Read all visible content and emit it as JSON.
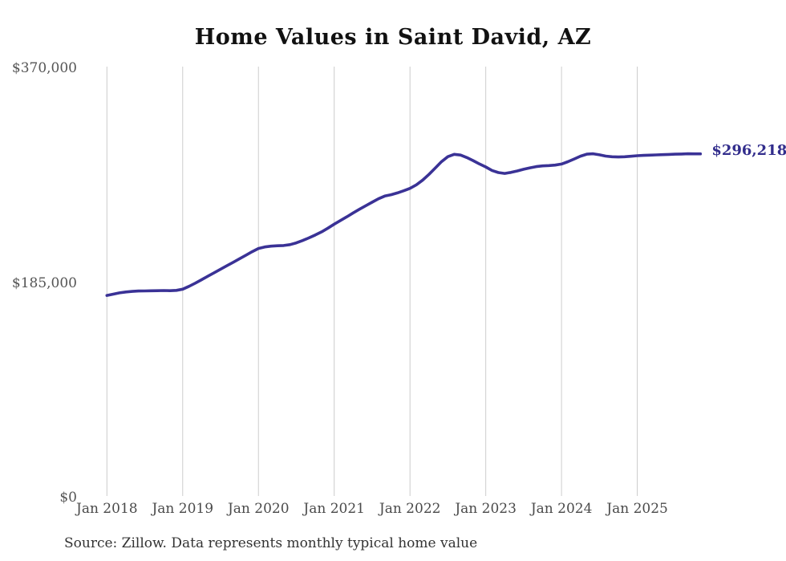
{
  "title": "Home Values in Saint David, AZ",
  "source_note": "Source: Zillow. Data represents monthly typical home value",
  "end_label": "$296,218",
  "colors": {
    "line": "#3a3296",
    "end_label_text": "#322d8c",
    "grid": "#cccccc",
    "axis_text": "#555555",
    "title_text": "#111111",
    "source_text": "#333333",
    "background": "#ffffff"
  },
  "chart_data": {
    "type": "line",
    "title": "Home Values in Saint David, AZ",
    "xlabel": "",
    "ylabel": "",
    "ylim": [
      0,
      370000
    ],
    "grid": "vertical-only",
    "legend": "none",
    "start_month": "2018-01",
    "end_month": "2025-11",
    "final_value": 296218,
    "x_tick_labels": [
      "Jan 2018",
      "Jan 2019",
      "Jan 2020",
      "Jan 2021",
      "Jan 2022",
      "Jan 2023",
      "Jan 2024",
      "Jan 2025"
    ],
    "y_ticks": [
      {
        "label": "$0",
        "value": 0
      },
      {
        "label": "$185,000",
        "value": 185000
      },
      {
        "label": "$370,000",
        "value": 370000
      }
    ],
    "series": [
      {
        "name": "Monthly typical home value",
        "values": [
          174200,
          175300,
          176400,
          177200,
          177700,
          178000,
          178100,
          178200,
          178300,
          178400,
          178300,
          178600,
          179600,
          182000,
          184800,
          187800,
          190800,
          193800,
          196800,
          199800,
          202800,
          205800,
          208800,
          211900,
          214700,
          216000,
          216700,
          217000,
          217200,
          218000,
          219500,
          221500,
          223800,
          226300,
          229000,
          232200,
          235600,
          238800,
          242000,
          245300,
          248500,
          251500,
          254500,
          257500,
          259800,
          261000,
          262500,
          264400,
          266500,
          269500,
          273500,
          278500,
          284000,
          289500,
          293800,
          295800,
          295200,
          293000,
          290400,
          287500,
          284900,
          281900,
          280100,
          279300,
          280200,
          281500,
          282900,
          284200,
          285200,
          285800,
          286100,
          286500,
          287400,
          289400,
          291800,
          294200,
          295900,
          296300,
          295400,
          294300,
          293700,
          293500,
          293700,
          294100,
          294600,
          294900,
          295100,
          295300,
          295500,
          295700,
          295900,
          296100,
          296300,
          296200,
          296218
        ]
      }
    ]
  }
}
